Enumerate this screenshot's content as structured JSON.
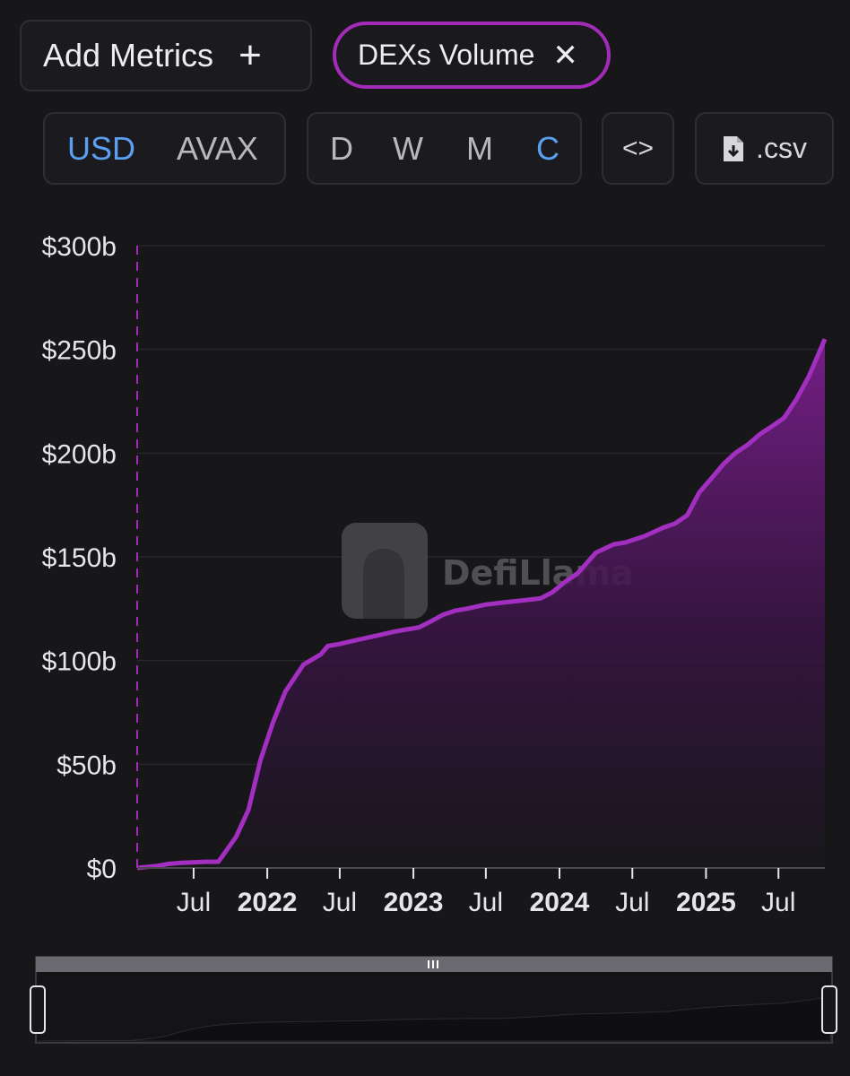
{
  "toolbar": {
    "add_metrics_label": "Add Metrics",
    "add_icon": "plus-icon",
    "active_metric": "DEXs Volume",
    "remove_icon": "close-icon",
    "currency_options": [
      "USD",
      "AVAX"
    ],
    "currency_selected": "USD",
    "period_options": [
      "D",
      "W",
      "M",
      "C"
    ],
    "period_selected": "C",
    "embed_icon": "code-brackets-icon",
    "csv_label": ".csv",
    "csv_icon": "file-download-icon"
  },
  "watermark": {
    "text": "DefiLlama",
    "icon": "llama-logo-icon"
  },
  "colors": {
    "accent": "#a22bb8",
    "line": "#a32fc0",
    "selected": "#5b9ff0",
    "background": "#17171a"
  },
  "chart_data": {
    "type": "area",
    "title": "",
    "xlabel": "",
    "ylabel": "",
    "ylim": [
      0,
      300
    ],
    "y_unit": "$b",
    "yticks": [
      {
        "value": 0,
        "label": "$0"
      },
      {
        "value": 50,
        "label": "$50b"
      },
      {
        "value": 100,
        "label": "$100b"
      },
      {
        "value": 150,
        "label": "$150b"
      },
      {
        "value": 200,
        "label": "$200b"
      },
      {
        "value": 250,
        "label": "$250b"
      },
      {
        "value": 300,
        "label": "$300b"
      }
    ],
    "xlim": [
      "2021-02-10",
      "2025-10-25"
    ],
    "xticks": [
      {
        "date": "2021-07-01",
        "label": "Jul",
        "major": false
      },
      {
        "date": "2022-01-01",
        "label": "2022",
        "major": true
      },
      {
        "date": "2022-07-01",
        "label": "Jul",
        "major": false
      },
      {
        "date": "2023-01-01",
        "label": "2023",
        "major": true
      },
      {
        "date": "2023-07-01",
        "label": "Jul",
        "major": false
      },
      {
        "date": "2024-01-01",
        "label": "2024",
        "major": true
      },
      {
        "date": "2024-07-01",
        "label": "Jul",
        "major": false
      },
      {
        "date": "2025-01-01",
        "label": "2025",
        "major": true
      },
      {
        "date": "2025-07-01",
        "label": "Jul",
        "major": false
      }
    ],
    "grid": true,
    "legend": "none",
    "series": [
      {
        "x": [
          "2021-02-10",
          "2021-04-01",
          "2021-05-01",
          "2021-06-01",
          "2021-08-01",
          "2021-09-01",
          "2021-10-15",
          "2021-11-15",
          "2021-12-15",
          "2022-01-15",
          "2022-02-15",
          "2022-04-01",
          "2022-05-15",
          "2022-06-01",
          "2022-07-01",
          "2022-08-15",
          "2022-10-01",
          "2022-11-15",
          "2022-12-15",
          "2023-01-15",
          "2023-02-15",
          "2023-03-15",
          "2023-04-15",
          "2023-05-15",
          "2023-07-01",
          "2023-08-15",
          "2023-10-01",
          "2023-11-15",
          "2023-12-15",
          "2024-01-15",
          "2024-02-15",
          "2024-04-01",
          "2024-05-15",
          "2024-06-15",
          "2024-08-01",
          "2024-09-15",
          "2024-10-15",
          "2024-11-15",
          "2024-12-15",
          "2025-01-15",
          "2025-02-15",
          "2025-03-15",
          "2025-04-15",
          "2025-05-15",
          "2025-06-15",
          "2025-07-15",
          "2025-08-15",
          "2025-09-15",
          "2025-10-25"
        ],
        "values": [
          0,
          1,
          2,
          2.5,
          3,
          3,
          15,
          28,
          52,
          70,
          85,
          98,
          103,
          107,
          108,
          110,
          112,
          114,
          115,
          116,
          119,
          122,
          124,
          125,
          127,
          128,
          129,
          130,
          133,
          138,
          142,
          152,
          156,
          157,
          160,
          164,
          166,
          170,
          181,
          188,
          195,
          200,
          204,
          209,
          213,
          217,
          226,
          237,
          255
        ]
      }
    ]
  }
}
